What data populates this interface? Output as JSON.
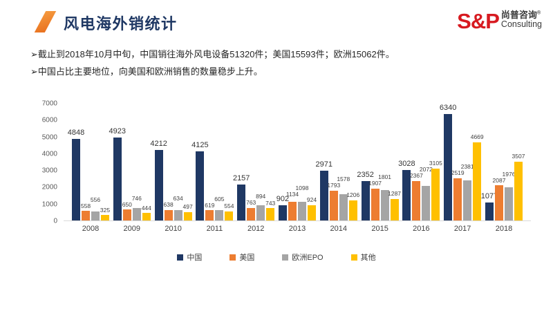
{
  "header": {
    "title": "风电海外销统计"
  },
  "logo": {
    "sp": "S&P",
    "cn": "尚普咨询",
    "reg": "®",
    "en": "Consulting"
  },
  "bullets": [
    "➢截止到2018年10月中旬，中国销往海外风电设备51320件；美国15593件；欧洲15062件。",
    "➢中国占比主要地位，向美国和欧洲销售的数量稳步上升。"
  ],
  "chart_data": {
    "type": "bar",
    "categories": [
      "2008",
      "2009",
      "2010",
      "2011",
      "2012",
      "2013",
      "2014",
      "2015",
      "2016",
      "2017",
      "2018"
    ],
    "series": [
      {
        "name": "中国",
        "color": "#1F3864",
        "values": [
          4848,
          4923,
          4212,
          4125,
          2157,
          902,
          2971,
          2352,
          3028,
          6340,
          1077
        ]
      },
      {
        "name": "美国",
        "color": "#ED7D31",
        "values": [
          558,
          650,
          638,
          619,
          763,
          1134,
          1793,
          1907,
          2367,
          2519,
          2087
        ]
      },
      {
        "name": "欧洲EPO",
        "color": "#A5A5A5",
        "values": [
          556,
          746,
          634,
          605,
          894,
          1098,
          1578,
          1801,
          2072,
          2381,
          1976
        ]
      },
      {
        "name": "其他",
        "color": "#FFC000",
        "values": [
          325,
          444,
          497,
          554,
          743,
          924,
          1206,
          1287,
          3105,
          4669,
          3507
        ]
      }
    ],
    "title": "",
    "xlabel": "",
    "ylabel": "",
    "ylim": [
      0,
      7000
    ],
    "y_ticks": [
      0,
      1000,
      2000,
      3000,
      4000,
      5000,
      6000,
      7000
    ],
    "grid": false,
    "legend_position": "bottom"
  }
}
